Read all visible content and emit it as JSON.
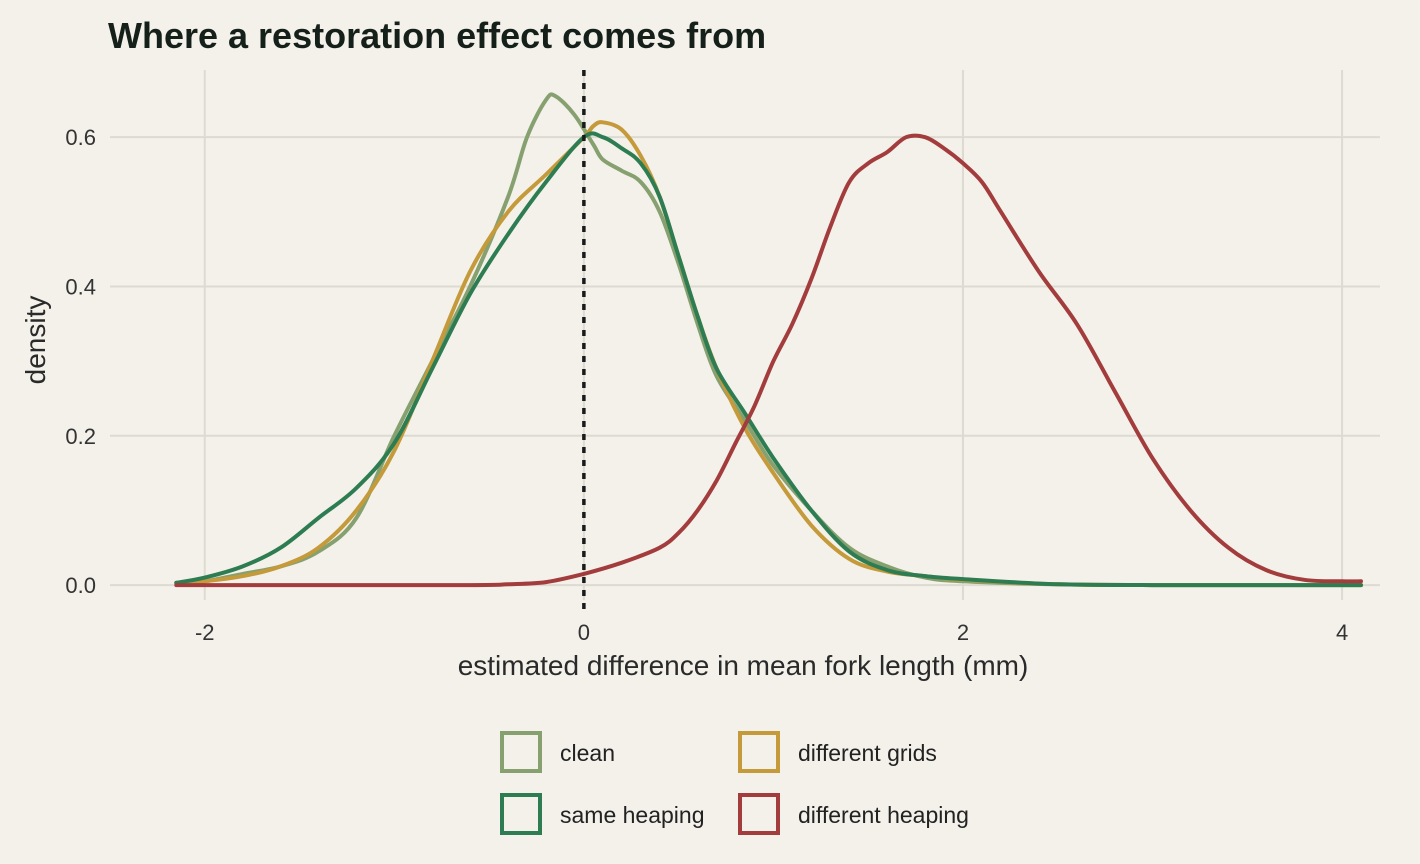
{
  "chart_data": {
    "type": "line",
    "title": "Where a restoration effect comes from",
    "xlabel": "estimated difference in mean fork length (mm)",
    "ylabel": "density",
    "xlim": [
      -2.5,
      4.2
    ],
    "ylim": [
      -0.02,
      0.69
    ],
    "x_ticks": [
      -2,
      0,
      2,
      4
    ],
    "x_tick_labels": [
      "-2",
      "0",
      "2",
      "4"
    ],
    "y_ticks": [
      0.0,
      0.2,
      0.4,
      0.6
    ],
    "y_tick_labels": [
      "0.0",
      "0.2",
      "0.4",
      "0.6"
    ],
    "grid": true,
    "reference_line": {
      "x": 0,
      "style": "dotted"
    },
    "legend_position": "bottom",
    "series": [
      {
        "name": "clean",
        "color": "#86a070",
        "points": [
          [
            -2.15,
            0.003
          ],
          [
            -2.0,
            0.005
          ],
          [
            -1.8,
            0.015
          ],
          [
            -1.6,
            0.025
          ],
          [
            -1.4,
            0.045
          ],
          [
            -1.2,
            0.09
          ],
          [
            -1.0,
            0.2
          ],
          [
            -0.8,
            0.3
          ],
          [
            -0.6,
            0.4
          ],
          [
            -0.4,
            0.52
          ],
          [
            -0.3,
            0.6
          ],
          [
            -0.2,
            0.65
          ],
          [
            -0.15,
            0.655
          ],
          [
            -0.05,
            0.63
          ],
          [
            0.05,
            0.59
          ],
          [
            0.1,
            0.57
          ],
          [
            0.2,
            0.555
          ],
          [
            0.3,
            0.54
          ],
          [
            0.4,
            0.5
          ],
          [
            0.5,
            0.43
          ],
          [
            0.6,
            0.35
          ],
          [
            0.7,
            0.28
          ],
          [
            0.85,
            0.22
          ],
          [
            1.0,
            0.16
          ],
          [
            1.2,
            0.1
          ],
          [
            1.4,
            0.05
          ],
          [
            1.6,
            0.025
          ],
          [
            1.8,
            0.01
          ],
          [
            2.0,
            0.005
          ],
          [
            2.5,
            0.001
          ],
          [
            3.0,
            0.0
          ],
          [
            3.5,
            0.0
          ],
          [
            4.1,
            0.0
          ]
        ]
      },
      {
        "name": "different grids",
        "color": "#c49a3a",
        "points": [
          [
            -2.15,
            0.002
          ],
          [
            -2.0,
            0.005
          ],
          [
            -1.8,
            0.012
          ],
          [
            -1.6,
            0.025
          ],
          [
            -1.4,
            0.05
          ],
          [
            -1.2,
            0.1
          ],
          [
            -1.0,
            0.18
          ],
          [
            -0.8,
            0.3
          ],
          [
            -0.6,
            0.42
          ],
          [
            -0.4,
            0.5
          ],
          [
            -0.2,
            0.55
          ],
          [
            0.0,
            0.6
          ],
          [
            0.05,
            0.615
          ],
          [
            0.1,
            0.62
          ],
          [
            0.2,
            0.61
          ],
          [
            0.3,
            0.575
          ],
          [
            0.4,
            0.52
          ],
          [
            0.5,
            0.44
          ],
          [
            0.6,
            0.36
          ],
          [
            0.7,
            0.29
          ],
          [
            0.85,
            0.21
          ],
          [
            1.0,
            0.15
          ],
          [
            1.2,
            0.08
          ],
          [
            1.4,
            0.035
          ],
          [
            1.6,
            0.018
          ],
          [
            1.8,
            0.012
          ],
          [
            2.0,
            0.007
          ],
          [
            2.5,
            0.001
          ],
          [
            3.0,
            0.0
          ],
          [
            3.5,
            0.0
          ],
          [
            4.1,
            0.0
          ]
        ]
      },
      {
        "name": "same heaping",
        "color": "#2e7d52",
        "points": [
          [
            -2.15,
            0.003
          ],
          [
            -2.0,
            0.01
          ],
          [
            -1.8,
            0.025
          ],
          [
            -1.6,
            0.05
          ],
          [
            -1.4,
            0.09
          ],
          [
            -1.2,
            0.13
          ],
          [
            -1.0,
            0.19
          ],
          [
            -0.8,
            0.29
          ],
          [
            -0.6,
            0.39
          ],
          [
            -0.4,
            0.47
          ],
          [
            -0.2,
            0.54
          ],
          [
            0.0,
            0.6
          ],
          [
            0.1,
            0.6
          ],
          [
            0.2,
            0.585
          ],
          [
            0.3,
            0.565
          ],
          [
            0.4,
            0.52
          ],
          [
            0.5,
            0.44
          ],
          [
            0.6,
            0.36
          ],
          [
            0.7,
            0.29
          ],
          [
            0.85,
            0.23
          ],
          [
            1.0,
            0.17
          ],
          [
            1.2,
            0.1
          ],
          [
            1.4,
            0.045
          ],
          [
            1.6,
            0.02
          ],
          [
            1.8,
            0.012
          ],
          [
            2.0,
            0.008
          ],
          [
            2.5,
            0.001
          ],
          [
            3.0,
            0.0
          ],
          [
            3.5,
            0.0
          ],
          [
            4.1,
            0.0
          ]
        ]
      },
      {
        "name": "different heaping",
        "color": "#a33d3d",
        "points": [
          [
            -2.15,
            0.0
          ],
          [
            -1.5,
            0.0
          ],
          [
            -0.6,
            0.0
          ],
          [
            -0.4,
            0.001
          ],
          [
            -0.2,
            0.004
          ],
          [
            0.0,
            0.015
          ],
          [
            0.2,
            0.03
          ],
          [
            0.4,
            0.05
          ],
          [
            0.5,
            0.07
          ],
          [
            0.6,
            0.1
          ],
          [
            0.7,
            0.14
          ],
          [
            0.8,
            0.19
          ],
          [
            0.9,
            0.24
          ],
          [
            1.0,
            0.3
          ],
          [
            1.1,
            0.35
          ],
          [
            1.2,
            0.41
          ],
          [
            1.3,
            0.48
          ],
          [
            1.4,
            0.54
          ],
          [
            1.5,
            0.565
          ],
          [
            1.6,
            0.58
          ],
          [
            1.7,
            0.6
          ],
          [
            1.8,
            0.6
          ],
          [
            1.9,
            0.585
          ],
          [
            2.0,
            0.565
          ],
          [
            2.1,
            0.54
          ],
          [
            2.2,
            0.5
          ],
          [
            2.4,
            0.42
          ],
          [
            2.6,
            0.35
          ],
          [
            2.8,
            0.26
          ],
          [
            3.0,
            0.17
          ],
          [
            3.2,
            0.1
          ],
          [
            3.4,
            0.05
          ],
          [
            3.6,
            0.02
          ],
          [
            3.8,
            0.007
          ],
          [
            4.0,
            0.005
          ],
          [
            4.1,
            0.005
          ]
        ]
      }
    ]
  }
}
